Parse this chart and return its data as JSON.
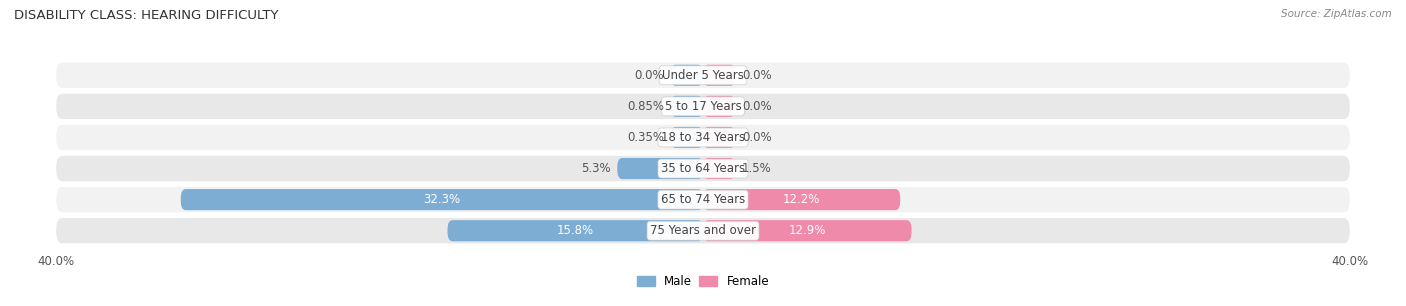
{
  "title": "DISABILITY CLASS: HEARING DIFFICULTY",
  "source_text": "Source: ZipAtlas.com",
  "categories": [
    "Under 5 Years",
    "5 to 17 Years",
    "18 to 34 Years",
    "35 to 64 Years",
    "65 to 74 Years",
    "75 Years and over"
  ],
  "male_values": [
    0.0,
    0.85,
    0.35,
    5.3,
    32.3,
    15.8
  ],
  "female_values": [
    0.0,
    0.0,
    0.0,
    1.5,
    12.2,
    12.9
  ],
  "male_color": "#7eadd4",
  "female_color": "#f08aaa",
  "male_color_bright": "#5b9bd5",
  "female_color_bright": "#eb5f8e",
  "row_bg_light": "#f2f2f2",
  "row_bg_dark": "#e8e8e8",
  "axis_max": 40.0,
  "min_bar_display": 2.0,
  "label_fontsize": 8.5,
  "title_fontsize": 9.5,
  "source_fontsize": 7.5,
  "legend_fontsize": 8.5,
  "cat_fontsize": 8.5
}
